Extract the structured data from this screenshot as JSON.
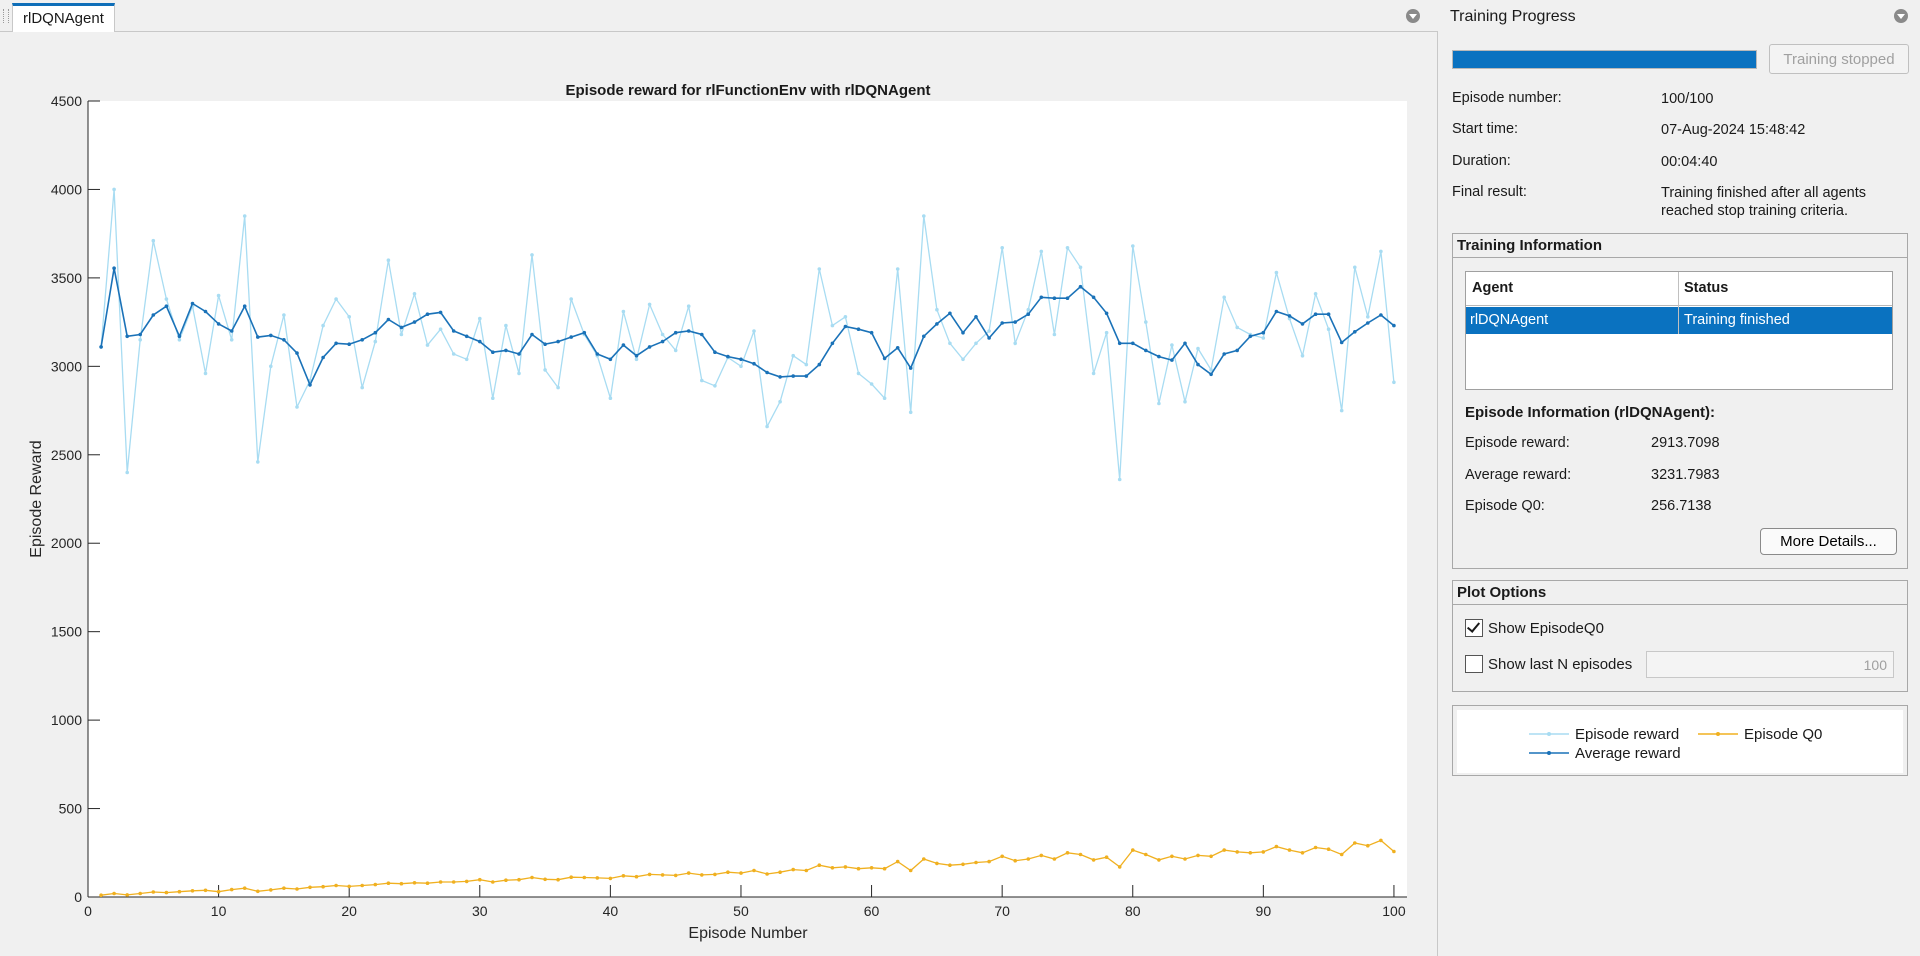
{
  "document_tab": {
    "label": "rlDQNAgent"
  },
  "chart_data": {
    "type": "line",
    "title": "Episode reward for rlFunctionEnv with rlDQNAgent",
    "xlabel": "Episode Number",
    "ylabel": "Episode Reward",
    "xlim": [
      0,
      101
    ],
    "ylim": [
      0,
      4500
    ],
    "xticks": [
      0,
      10,
      20,
      30,
      40,
      50,
      60,
      70,
      80,
      90,
      100
    ],
    "yticks": [
      0,
      500,
      1000,
      1500,
      2000,
      2500,
      3000,
      3500,
      4000,
      4500
    ],
    "grid": false,
    "legend_position": "separate-panel",
    "series": [
      {
        "name": "Episode reward",
        "color": "#a8dcf2",
        "values": [
          3110,
          4000,
          2400,
          3150,
          3710,
          3380,
          3150,
          3340,
          2960,
          3400,
          3150,
          3850,
          2460,
          3000,
          3290,
          2770,
          2920,
          3230,
          3380,
          3280,
          2880,
          3140,
          3600,
          3180,
          3410,
          3120,
          3210,
          3070,
          3040,
          3270,
          2820,
          3230,
          2960,
          3630,
          2980,
          2880,
          3380,
          3180,
          3060,
          2820,
          3310,
          3040,
          3350,
          3180,
          3090,
          3340,
          2920,
          2890,
          3050,
          3000,
          3200,
          2660,
          2800,
          3060,
          3010,
          3550,
          3230,
          3280,
          2960,
          2900,
          2820,
          3550,
          2740,
          3850,
          3320,
          3130,
          3040,
          3130,
          3200,
          3670,
          3130,
          3320,
          3650,
          3180,
          3670,
          3560,
          2960,
          3190,
          2360,
          3680,
          3250,
          2790,
          3120,
          2800,
          3100,
          2980,
          3390,
          3220,
          3180,
          3160,
          3530,
          3270,
          3060,
          3410,
          3210,
          2750,
          3560,
          3280,
          3650,
          2910
        ]
      },
      {
        "name": "Average reward",
        "color": "#1a72b8",
        "values": [
          3110,
          3555,
          3170,
          3180,
          3290,
          3340,
          3170,
          3355,
          3310,
          3240,
          3200,
          3340,
          3165,
          3175,
          3150,
          3075,
          2895,
          3050,
          3130,
          3125,
          3150,
          3190,
          3265,
          3220,
          3250,
          3295,
          3305,
          3200,
          3170,
          3140,
          3080,
          3090,
          3070,
          3180,
          3125,
          3140,
          3165,
          3190,
          3070,
          3040,
          3120,
          3060,
          3110,
          3140,
          3190,
          3200,
          3180,
          3080,
          3055,
          3040,
          3015,
          2965,
          2940,
          2945,
          2945,
          3010,
          3130,
          3225,
          3210,
          3190,
          3045,
          3105,
          2990,
          3170,
          3240,
          3300,
          3190,
          3280,
          3160,
          3245,
          3250,
          3295,
          3390,
          3385,
          3385,
          3450,
          3390,
          3300,
          3130,
          3130,
          3090,
          3055,
          3035,
          3130,
          3010,
          2955,
          3070,
          3090,
          3170,
          3190,
          3310,
          3285,
          3240,
          3295,
          3295,
          3135,
          3195,
          3245,
          3290,
          3230
        ]
      },
      {
        "name": "Episode Q0",
        "color": "#f0b020",
        "values": [
          10,
          20,
          12,
          20,
          28,
          25,
          30,
          35,
          38,
          30,
          42,
          50,
          32,
          40,
          50,
          45,
          55,
          58,
          65,
          60,
          65,
          70,
          78,
          75,
          80,
          78,
          85,
          85,
          88,
          98,
          85,
          95,
          98,
          110,
          100,
          98,
          112,
          110,
          108,
          105,
          120,
          115,
          128,
          125,
          122,
          135,
          125,
          128,
          140,
          135,
          150,
          130,
          140,
          155,
          150,
          180,
          165,
          170,
          160,
          165,
          160,
          200,
          150,
          215,
          190,
          180,
          185,
          195,
          200,
          230,
          205,
          215,
          235,
          215,
          250,
          240,
          210,
          225,
          170,
          265,
          240,
          210,
          230,
          215,
          235,
          230,
          265,
          255,
          250,
          255,
          285,
          265,
          250,
          280,
          270,
          240,
          305,
          290,
          320,
          257
        ]
      }
    ]
  },
  "right_panel": {
    "title": "Training Progress",
    "progress": 1.0,
    "stop_button_label": "Training stopped",
    "info": {
      "episode_number_label": "Episode number:",
      "episode_number_value": "100/100",
      "start_time_label": "Start time:",
      "start_time_value": "07-Aug-2024 15:48:42",
      "duration_label": "Duration:",
      "duration_value": "00:04:40",
      "final_result_label": "Final result:",
      "final_result_value": "Training finished after all agents reached stop training criteria."
    },
    "training_information": {
      "title": "Training Information",
      "headers": [
        "Agent",
        "Status"
      ],
      "rows": [
        [
          "rlDQNAgent",
          "Training finished"
        ]
      ]
    },
    "episode_information": {
      "title": "Episode Information (rlDQNAgent):",
      "episode_reward_label": "Episode reward:",
      "episode_reward_value": "2913.7098",
      "average_reward_label": "Average reward:",
      "average_reward_value": "3231.7983",
      "episode_q0_label": "Episode Q0:",
      "episode_q0_value": "256.7138",
      "more_details_label": "More Details..."
    },
    "plot_options": {
      "title": "Plot Options",
      "show_q0_label": "Show EpisodeQ0",
      "show_q0_checked": true,
      "show_last_n_label": "Show last N episodes",
      "show_last_n_checked": false,
      "last_n_value": "100"
    },
    "legend": {
      "episode_reward": "Episode reward",
      "episode_q0": "Episode Q0",
      "average_reward": "Average reward"
    }
  }
}
